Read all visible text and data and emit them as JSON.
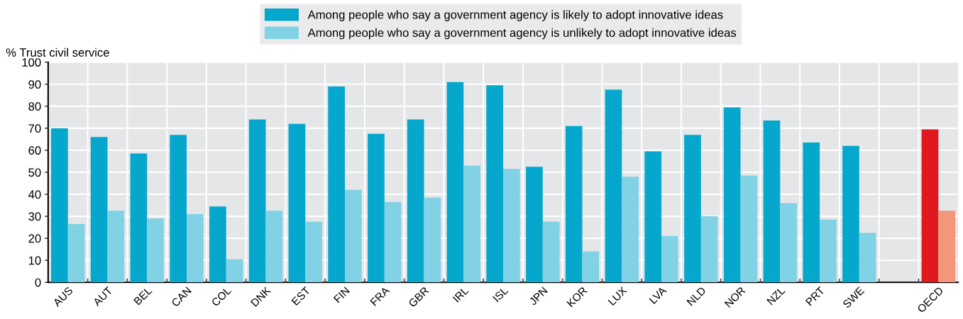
{
  "chart_data": {
    "type": "bar",
    "ylabel": "% Trust civil service",
    "categories": [
      "AUS",
      "AUT",
      "BEL",
      "CAN",
      "COL",
      "DNK",
      "EST",
      "FIN",
      "FRA",
      "GBR",
      "IRL",
      "ISL",
      "JPN",
      "KOR",
      "LUX",
      "LVA",
      "NLD",
      "NOR",
      "NZL",
      "PRT",
      "SWE",
      null,
      "OECD"
    ],
    "series": [
      {
        "name": "Among people who say a government agency is likely to adopt innovative ideas",
        "color": "#05a8cc",
        "colors": [
          "#05a8cc",
          "#05a8cc",
          "#05a8cc",
          "#05a8cc",
          "#05a8cc",
          "#05a8cc",
          "#05a8cc",
          "#05a8cc",
          "#05a8cc",
          "#05a8cc",
          "#05a8cc",
          "#05a8cc",
          "#05a8cc",
          "#05a8cc",
          "#05a8cc",
          "#05a8cc",
          "#05a8cc",
          "#05a8cc",
          "#05a8cc",
          "#05a8cc",
          "#05a8cc",
          "#05a8cc",
          "#e0191f"
        ],
        "values": [
          70,
          66,
          58.5,
          67,
          34.5,
          74,
          72,
          89,
          67.5,
          74,
          91,
          89.5,
          52.5,
          71,
          87.5,
          59.5,
          67,
          79.5,
          73.5,
          63.5,
          62,
          null,
          69.5
        ]
      },
      {
        "name": "Among people who say a government agency is unlikely to adopt innovative ideas",
        "color": "#80d2e4",
        "colors": [
          "#80d2e4",
          "#80d2e4",
          "#80d2e4",
          "#80d2e4",
          "#80d2e4",
          "#80d2e4",
          "#80d2e4",
          "#80d2e4",
          "#80d2e4",
          "#80d2e4",
          "#80d2e4",
          "#80d2e4",
          "#80d2e4",
          "#80d2e4",
          "#80d2e4",
          "#80d2e4",
          "#80d2e4",
          "#80d2e4",
          "#80d2e4",
          "#80d2e4",
          "#80d2e4",
          "#80d2e4",
          "#f4967a"
        ],
        "values": [
          26.5,
          32.5,
          29,
          31,
          10.5,
          32.5,
          27.5,
          42,
          36.5,
          38.5,
          53,
          51.5,
          27.5,
          14,
          48,
          21,
          30,
          48.5,
          36,
          28.5,
          22.5,
          null,
          32.5
        ]
      }
    ],
    "ylim": [
      0,
      100
    ],
    "yticks": [
      0,
      10,
      20,
      30,
      40,
      50,
      60,
      70,
      80,
      90,
      100
    ],
    "grid": true,
    "legend": "top"
  }
}
